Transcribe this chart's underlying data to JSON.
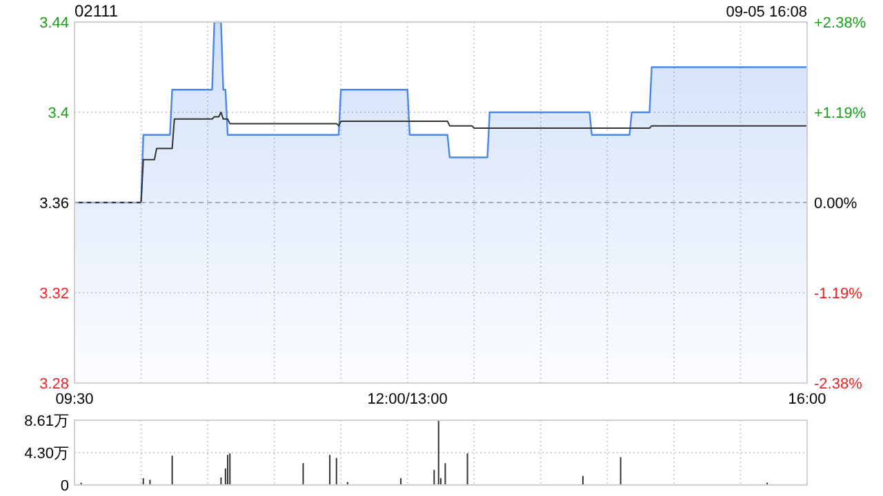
{
  "chart_data": [
    {
      "type": "line",
      "title": "02111",
      "annotations": [
        "09-05 16:08"
      ],
      "categories": [
        "09:30",
        null,
        null,
        null,
        null,
        null,
        null,
        null,
        null,
        null,
        null,
        null,
        null,
        null,
        null,
        null,
        null,
        null,
        null,
        null,
        null,
        null,
        null,
        null,
        null,
        null,
        null,
        null,
        null,
        null,
        null,
        null,
        null,
        null,
        null,
        null,
        null,
        null,
        null,
        null,
        null,
        null,
        null,
        null,
        null,
        null,
        null,
        null,
        null,
        null,
        null,
        null,
        null,
        null,
        null,
        null,
        null,
        null,
        null,
        null,
        null,
        null,
        null,
        null,
        null,
        null,
        null,
        null,
        null,
        null,
        null,
        null,
        null,
        null,
        null,
        null,
        null,
        null,
        null,
        null,
        null,
        null,
        null,
        null,
        null,
        null,
        null,
        null,
        null,
        null,
        null,
        null,
        null,
        null,
        null,
        null,
        null,
        null,
        null,
        null,
        null,
        null,
        null,
        null,
        null,
        null,
        null,
        null,
        null,
        null,
        null,
        null,
        null,
        null,
        null,
        null,
        null,
        null,
        null,
        null,
        null,
        null,
        null,
        null,
        null,
        null,
        null,
        null,
        null,
        null,
        null,
        null,
        null,
        null,
        null,
        null,
        null,
        null,
        null,
        null,
        null,
        null,
        null,
        null,
        null,
        null,
        null,
        null,
        null,
        null,
        "12:00/13:00",
        null,
        null,
        null,
        null,
        null,
        null,
        null,
        null,
        null,
        null,
        null,
        null,
        null,
        null,
        null,
        null,
        null,
        null,
        null,
        null,
        null,
        null,
        null,
        null,
        null,
        null,
        null,
        null,
        null,
        null,
        null,
        null,
        null,
        null,
        null,
        null,
        null,
        null,
        null,
        null,
        null,
        null,
        null,
        null,
        null,
        null,
        null,
        null,
        null,
        null,
        null,
        null,
        null,
        null,
        null,
        null,
        null,
        null,
        null,
        null,
        null,
        null,
        null,
        null,
        null,
        null,
        null,
        null,
        null,
        null,
        null,
        null,
        null,
        null,
        null,
        null,
        null,
        null,
        null,
        null,
        null,
        null,
        null,
        null,
        null,
        null,
        null,
        null,
        null,
        null,
        null,
        null,
        null,
        null,
        null,
        null,
        null,
        null,
        null,
        null,
        null,
        null,
        null,
        null,
        null,
        null,
        null,
        null,
        null,
        null,
        null,
        null,
        null,
        null,
        null,
        null,
        null,
        null,
        null,
        null,
        null,
        null,
        null,
        null,
        null,
        null,
        null,
        null,
        null,
        null,
        null,
        null,
        null,
        null,
        null,
        null,
        null,
        null,
        null,
        null,
        null,
        null,
        null,
        null,
        null,
        null,
        null,
        null,
        null,
        null,
        null,
        null,
        null,
        null,
        null,
        null,
        null,
        null,
        null,
        null,
        null,
        null,
        null,
        null,
        null,
        null,
        null,
        null,
        null,
        null,
        null,
        null,
        null,
        null,
        null,
        null,
        null,
        null,
        null,
        "16:00"
      ],
      "series": [
        {
          "type": "area",
          "color": "#4a86e8",
          "values": [
            3.36,
            3.36,
            3.36,
            3.36,
            3.36,
            3.36,
            3.36,
            3.36,
            3.36,
            3.36,
            3.36,
            3.36,
            3.36,
            3.36,
            3.36,
            3.36,
            3.36,
            3.36,
            3.36,
            3.36,
            3.36,
            3.36,
            3.36,
            3.36,
            3.36,
            3.36,
            3.36,
            3.36,
            3.36,
            3.36,
            3.36,
            3.39,
            3.39,
            3.39,
            3.39,
            3.39,
            3.39,
            3.39,
            3.39,
            3.39,
            3.39,
            3.39,
            3.39,
            3.39,
            3.41,
            3.41,
            3.41,
            3.41,
            3.41,
            3.41,
            3.41,
            3.41,
            3.41,
            3.41,
            3.41,
            3.41,
            3.41,
            3.41,
            3.41,
            3.41,
            3.41,
            3.41,
            3.41,
            3.44,
            3.44,
            3.44,
            3.44,
            3.41,
            3.41,
            3.39,
            3.39,
            3.39,
            3.39,
            3.39,
            3.39,
            3.39,
            3.39,
            3.39,
            3.39,
            3.39,
            3.39,
            3.39,
            3.39,
            3.39,
            3.39,
            3.39,
            3.39,
            3.39,
            3.39,
            3.39,
            3.39,
            3.39,
            3.39,
            3.39,
            3.39,
            3.39,
            3.39,
            3.39,
            3.39,
            3.39,
            3.39,
            3.39,
            3.39,
            3.39,
            3.39,
            3.39,
            3.39,
            3.39,
            3.39,
            3.39,
            3.39,
            3.39,
            3.39,
            3.39,
            3.39,
            3.39,
            3.39,
            3.39,
            3.39,
            3.39,
            3.41,
            3.41,
            3.41,
            3.41,
            3.41,
            3.41,
            3.41,
            3.41,
            3.41,
            3.41,
            3.41,
            3.41,
            3.41,
            3.41,
            3.41,
            3.41,
            3.41,
            3.41,
            3.41,
            3.41,
            3.41,
            3.41,
            3.41,
            3.41,
            3.41,
            3.41,
            3.41,
            3.41,
            3.41,
            3.41,
            3.41,
            3.39,
            3.39,
            3.39,
            3.39,
            3.39,
            3.39,
            3.39,
            3.39,
            3.39,
            3.39,
            3.39,
            3.39,
            3.39,
            3.39,
            3.39,
            3.39,
            3.39,
            3.39,
            3.38,
            3.38,
            3.38,
            3.38,
            3.38,
            3.38,
            3.38,
            3.38,
            3.38,
            3.38,
            3.38,
            3.38,
            3.38,
            3.38,
            3.38,
            3.38,
            3.38,
            3.38,
            3.4,
            3.4,
            3.4,
            3.4,
            3.4,
            3.4,
            3.4,
            3.4,
            3.4,
            3.4,
            3.4,
            3.4,
            3.4,
            3.4,
            3.4,
            3.4,
            3.4,
            3.4,
            3.4,
            3.4,
            3.4,
            3.4,
            3.4,
            3.4,
            3.4,
            3.4,
            3.4,
            3.4,
            3.4,
            3.4,
            3.4,
            3.4,
            3.4,
            3.4,
            3.4,
            3.4,
            3.4,
            3.4,
            3.4,
            3.4,
            3.4,
            3.4,
            3.4,
            3.4,
            3.4,
            3.4,
            3.39,
            3.39,
            3.39,
            3.39,
            3.39,
            3.39,
            3.39,
            3.39,
            3.39,
            3.39,
            3.39,
            3.39,
            3.39,
            3.39,
            3.39,
            3.39,
            3.39,
            3.39,
            3.4,
            3.4,
            3.4,
            3.4,
            3.4,
            3.4,
            3.4,
            3.4,
            3.4,
            3.42,
            3.42,
            3.42,
            3.42,
            3.42,
            3.42,
            3.42,
            3.42,
            3.42,
            3.42,
            3.42,
            3.42,
            3.42,
            3.42,
            3.42,
            3.42,
            3.42,
            3.42,
            3.42,
            3.42,
            3.42,
            3.42,
            3.42,
            3.42,
            3.42,
            3.42,
            3.42,
            3.42,
            3.42,
            3.42,
            3.42,
            3.42,
            3.42,
            3.42,
            3.42,
            3.42,
            3.42,
            3.42,
            3.42,
            3.42,
            3.42,
            3.42,
            3.42,
            3.42,
            3.42,
            3.42,
            3.42,
            3.42,
            3.42,
            3.42,
            3.42,
            3.42,
            3.42,
            3.42,
            3.42,
            3.42,
            3.42,
            3.42,
            3.42,
            3.42,
            3.42,
            3.42,
            3.42,
            3.42,
            3.42,
            3.42,
            3.42,
            3.42,
            3.42,
            3.42,
            3.42
          ]
        },
        {
          "color": "#333333",
          "values": [
            3.36,
            3.36,
            3.36,
            3.36,
            3.36,
            3.36,
            3.36,
            3.36,
            3.36,
            3.36,
            3.36,
            3.36,
            3.36,
            3.36,
            3.36,
            3.36,
            3.36,
            3.36,
            3.36,
            3.36,
            3.36,
            3.36,
            3.36,
            3.36,
            3.36,
            3.36,
            3.36,
            3.36,
            3.36,
            3.36,
            3.36,
            3.379,
            3.379,
            3.379,
            3.379,
            3.379,
            3.379,
            3.384,
            3.384,
            3.384,
            3.384,
            3.384,
            3.384,
            3.384,
            3.384,
            3.397,
            3.397,
            3.397,
            3.397,
            3.397,
            3.397,
            3.397,
            3.397,
            3.397,
            3.397,
            3.397,
            3.397,
            3.397,
            3.397,
            3.397,
            3.397,
            3.397,
            3.397,
            3.398,
            3.398,
            3.398,
            3.4,
            3.397,
            3.397,
            3.397,
            3.395,
            3.395,
            3.395,
            3.395,
            3.395,
            3.395,
            3.395,
            3.395,
            3.395,
            3.395,
            3.395,
            3.395,
            3.395,
            3.395,
            3.395,
            3.395,
            3.395,
            3.395,
            3.395,
            3.395,
            3.395,
            3.395,
            3.395,
            3.395,
            3.395,
            3.395,
            3.395,
            3.395,
            3.395,
            3.395,
            3.395,
            3.395,
            3.395,
            3.395,
            3.395,
            3.395,
            3.395,
            3.395,
            3.395,
            3.395,
            3.395,
            3.395,
            3.395,
            3.395,
            3.395,
            3.395,
            3.395,
            3.395,
            3.395,
            3.394,
            3.396,
            3.396,
            3.396,
            3.396,
            3.396,
            3.396,
            3.396,
            3.396,
            3.396,
            3.396,
            3.396,
            3.396,
            3.396,
            3.396,
            3.396,
            3.396,
            3.396,
            3.396,
            3.396,
            3.396,
            3.396,
            3.396,
            3.396,
            3.396,
            3.396,
            3.396,
            3.396,
            3.396,
            3.396,
            3.396,
            3.396,
            3.396,
            3.396,
            3.396,
            3.396,
            3.396,
            3.396,
            3.396,
            3.396,
            3.396,
            3.396,
            3.396,
            3.396,
            3.396,
            3.396,
            3.396,
            3.396,
            3.396,
            3.396,
            3.394,
            3.394,
            3.394,
            3.394,
            3.394,
            3.394,
            3.394,
            3.394,
            3.394,
            3.394,
            3.394,
            3.393,
            3.393,
            3.393,
            3.393,
            3.393,
            3.393,
            3.393,
            3.393,
            3.393,
            3.393,
            3.393,
            3.393,
            3.393,
            3.393,
            3.393,
            3.393,
            3.393,
            3.393,
            3.393,
            3.393,
            3.393,
            3.393,
            3.393,
            3.393,
            3.393,
            3.393,
            3.393,
            3.393,
            3.393,
            3.393,
            3.393,
            3.393,
            3.393,
            3.393,
            3.393,
            3.393,
            3.393,
            3.393,
            3.393,
            3.393,
            3.393,
            3.393,
            3.393,
            3.393,
            3.393,
            3.393,
            3.393,
            3.393,
            3.393,
            3.393,
            3.393,
            3.393,
            3.393,
            3.393,
            3.393,
            3.393,
            3.393,
            3.393,
            3.393,
            3.393,
            3.393,
            3.393,
            3.393,
            3.393,
            3.393,
            3.393,
            3.393,
            3.393,
            3.393,
            3.393,
            3.393,
            3.393,
            3.393,
            3.393,
            3.393,
            3.393,
            3.393,
            3.393,
            3.393,
            3.393,
            3.394,
            3.394,
            3.394,
            3.394,
            3.394,
            3.394,
            3.394,
            3.394,
            3.394,
            3.394,
            3.394,
            3.394,
            3.394,
            3.394,
            3.394,
            3.394,
            3.394,
            3.394,
            3.394,
            3.394,
            3.394,
            3.394,
            3.394,
            3.394,
            3.394,
            3.394,
            3.394,
            3.394,
            3.394,
            3.394,
            3.394,
            3.394,
            3.394,
            3.394,
            3.394,
            3.394,
            3.394,
            3.394,
            3.394,
            3.394,
            3.394,
            3.394,
            3.394,
            3.394,
            3.394,
            3.394,
            3.394,
            3.394,
            3.394,
            3.394,
            3.394,
            3.394,
            3.394,
            3.394,
            3.394,
            3.394,
            3.394,
            3.394,
            3.394,
            3.394,
            3.394,
            3.394,
            3.394,
            3.394,
            3.394,
            3.394,
            3.394,
            3.394,
            3.394,
            3.394,
            3.394
          ]
        }
      ],
      "ylim": [
        3.28,
        3.44
      ],
      "yticks": [
        3.28,
        3.32,
        3.36,
        3.4,
        3.44
      ],
      "y2lim": [
        -2.38,
        2.38
      ],
      "y2ticks": [
        {
          "value": -2.38,
          "label": "-2.38%"
        },
        {
          "value": -1.19,
          "label": "-1.19%"
        },
        {
          "value": 0,
          "label": "0.00%"
        },
        {
          "value": 1.19,
          "label": "+1.19%"
        },
        {
          "value": 2.38,
          "label": "+2.38%"
        }
      ],
      "ref_lines": [
        {
          "axis": "y",
          "value": 3.36,
          "line_style": "dashed",
          "color": "#aaaaaa"
        }
      ],
      "grid": true
    },
    {
      "type": "bar",
      "color": "#333333",
      "categories": [
        null,
        null,
        null,
        null,
        null,
        null,
        null,
        null,
        null,
        null,
        null,
        null,
        null,
        null,
        null,
        null,
        null,
        null,
        null,
        null,
        null,
        null,
        null,
        null,
        null,
        null,
        null,
        null,
        null,
        null,
        null,
        null,
        null,
        null,
        null,
        null,
        null,
        null,
        null,
        null,
        null,
        null,
        null,
        null,
        null,
        null,
        null,
        null,
        null,
        null,
        null,
        null,
        null,
        null,
        null,
        null,
        null,
        null,
        null,
        null,
        null,
        null,
        null,
        null,
        null,
        null,
        null,
        null,
        null,
        null,
        null,
        null,
        null,
        null,
        null,
        null,
        null,
        null,
        null,
        null,
        null,
        null,
        null,
        null,
        null,
        null,
        null,
        null,
        null,
        null,
        null,
        null,
        null,
        null,
        null,
        null,
        null,
        null,
        null,
        null,
        null,
        null,
        null,
        null,
        null,
        null,
        null,
        null,
        null,
        null,
        null,
        null,
        null,
        null,
        null,
        null,
        null,
        null,
        null,
        null,
        null,
        null,
        null,
        null,
        null,
        null,
        null,
        null,
        null,
        null,
        null,
        null,
        null,
        null,
        null,
        null,
        null,
        null,
        null,
        null,
        null,
        null,
        null,
        null,
        null,
        null,
        null,
        null,
        null,
        null,
        null,
        null,
        null,
        null,
        null,
        null,
        null,
        null,
        null,
        null,
        null,
        null,
        null,
        null,
        null,
        null,
        null,
        null,
        null,
        null,
        null,
        null,
        null,
        null,
        null,
        null,
        null,
        null,
        null,
        null,
        null,
        null,
        null,
        null,
        null,
        null,
        null,
        null,
        null,
        null,
        null,
        null,
        null,
        null,
        null,
        null,
        null,
        null,
        null,
        null,
        null,
        null,
        null,
        null,
        null,
        null,
        null,
        null,
        null,
        null,
        null,
        null,
        null,
        null,
        null,
        null,
        null,
        null,
        null,
        null,
        null,
        null,
        null,
        null,
        null,
        null,
        null,
        null,
        null,
        null,
        null,
        null,
        null,
        null,
        null,
        null,
        null,
        null,
        null,
        null,
        null,
        null,
        null,
        null,
        null,
        null,
        null,
        null,
        null,
        null,
        null,
        null,
        null,
        null,
        null,
        null,
        null,
        null,
        null,
        null,
        null,
        null,
        null,
        null,
        null,
        null,
        null,
        null,
        null,
        null,
        null,
        null,
        null,
        null,
        null,
        null,
        null,
        null,
        null,
        null,
        null,
        null,
        null,
        null,
        null,
        null,
        null,
        null,
        null,
        null,
        null,
        null,
        null,
        null,
        null,
        null,
        null,
        null,
        null,
        null,
        null,
        null,
        null,
        null,
        null,
        null,
        null,
        null,
        null,
        null,
        null,
        null,
        null,
        null,
        null,
        null,
        null,
        null,
        null,
        null,
        null,
        null,
        null,
        null,
        null,
        null,
        null,
        null,
        null,
        null,
        null
      ],
      "values": [
        null,
        null,
        null,
        0.3,
        null,
        null,
        null,
        null,
        null,
        null,
        null,
        null,
        null,
        null,
        null,
        null,
        null,
        null,
        null,
        null,
        null,
        null,
        null,
        null,
        null,
        null,
        null,
        null,
        null,
        null,
        null,
        0.9,
        null,
        null,
        0.7,
        null,
        null,
        null,
        null,
        null,
        null,
        null,
        null,
        null,
        3.9,
        null,
        null,
        null,
        null,
        null,
        null,
        null,
        null,
        null,
        null,
        null,
        null,
        null,
        null,
        null,
        null,
        null,
        null,
        null,
        null,
        null,
        1.0,
        null,
        2.2,
        4.0,
        4.2,
        null,
        null,
        null,
        null,
        null,
        null,
        null,
        null,
        null,
        null,
        null,
        null,
        null,
        null,
        null,
        null,
        null,
        null,
        null,
        null,
        null,
        null,
        null,
        null,
        null,
        null,
        null,
        null,
        null,
        null,
        null,
        null,
        2.9,
        null,
        null,
        null,
        null,
        null,
        null,
        null,
        null,
        null,
        null,
        null,
        4.0,
        null,
        null,
        3.6,
        null,
        null,
        null,
        null,
        0.4,
        null,
        null,
        null,
        null,
        null,
        null,
        null,
        null,
        null,
        null,
        null,
        null,
        null,
        null,
        null,
        null,
        null,
        null,
        null,
        null,
        null,
        null,
        null,
        0.9,
        null,
        null,
        null,
        null,
        null,
        null,
        null,
        null,
        null,
        null,
        null,
        null,
        null,
        null,
        2.0,
        null,
        8.6,
        0.9,
        null,
        2.9,
        null,
        null,
        null,
        null,
        null,
        null,
        null,
        null,
        null,
        4.2,
        null,
        null,
        null,
        null,
        null,
        null,
        null,
        null,
        null,
        null,
        null,
        null,
        null,
        null,
        null,
        null,
        null,
        null,
        null,
        null,
        null,
        null,
        null,
        null,
        null,
        null,
        null,
        null,
        null,
        null,
        null,
        null,
        null,
        null,
        null,
        null,
        null,
        null,
        null,
        null,
        null,
        null,
        null,
        null,
        null,
        null,
        null,
        null,
        null,
        null,
        null,
        1.2,
        null,
        null,
        null,
        null,
        null,
        null,
        null,
        null,
        null,
        null,
        null,
        null,
        null,
        null,
        null,
        null,
        3.7,
        null,
        null,
        null,
        null,
        null,
        null,
        null,
        null,
        null,
        null,
        null,
        null,
        null,
        null,
        null,
        null,
        null,
        null,
        null,
        null,
        null,
        null,
        null,
        null,
        null,
        null,
        null,
        null,
        null,
        null,
        null,
        null,
        null,
        null,
        null,
        null,
        null,
        null,
        null,
        null,
        null,
        null,
        null,
        null,
        null,
        null,
        null,
        null,
        null,
        null,
        null,
        null,
        null,
        null,
        null,
        null,
        null,
        null,
        null,
        null,
        null,
        null,
        null,
        null,
        null,
        0.3,
        null,
        null,
        null,
        null,
        null,
        null,
        null,
        null,
        null,
        null,
        null,
        null,
        null,
        null,
        null,
        null,
        null,
        null
      ],
      "ylim": [
        0,
        8.61
      ],
      "yticks": [
        0,
        {
          "value": 4.3,
          "label": "4.30万"
        },
        {
          "value": 8.61,
          "label": "8.61万"
        }
      ],
      "tick_labels": "y",
      "grid": true
    }
  ]
}
